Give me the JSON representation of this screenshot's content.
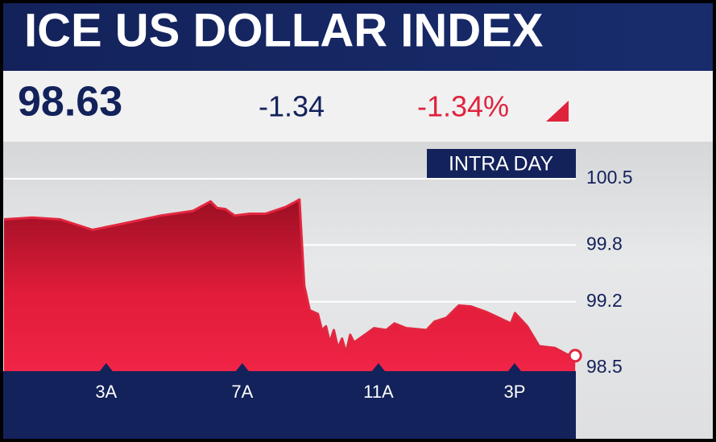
{
  "header": {
    "title": "ICE US DOLLAR INDEX",
    "price": "98.63",
    "change": "-1.34",
    "percent_change": "-1.34%"
  },
  "chart_data": {
    "type": "line",
    "label": "INTRA DAY",
    "x": [
      0,
      0.83,
      1.65,
      2.6,
      3.43,
      4.6,
      5.55,
      6.07,
      6.26,
      6.5,
      6.78,
      7.21,
      7.68,
      8.27,
      8.58,
      8.68,
      8.82,
      8.98,
      9.22,
      9.34,
      9.46,
      9.57,
      9.69,
      9.81,
      9.93,
      10.05,
      10.17,
      10.28,
      10.64,
      10.87,
      11.23,
      11.47,
      11.82,
      12.41,
      12.65,
      13.0,
      13.36,
      13.71,
      14.18,
      14.54,
      14.89,
      15.01,
      15.37,
      15.72,
      16.19,
      16.55,
      16.78
    ],
    "series": [
      {
        "name": "ICE US Dollar Index",
        "color": "#e3263f",
        "values": [
          100.07,
          100.09,
          100.07,
          99.96,
          100.02,
          100.11,
          100.16,
          100.26,
          100.19,
          100.18,
          100.11,
          100.13,
          100.13,
          100.2,
          100.26,
          100.28,
          99.37,
          99.11,
          99.07,
          98.9,
          98.94,
          98.77,
          98.9,
          98.71,
          98.81,
          98.66,
          98.85,
          98.77,
          98.86,
          98.92,
          98.9,
          98.97,
          98.92,
          98.9,
          98.99,
          99.03,
          99.16,
          99.15,
          99.09,
          99.03,
          98.97,
          99.08,
          98.94,
          98.73,
          98.71,
          98.64,
          98.63
        ]
      }
    ],
    "xlim": [
      0,
      16.8
    ],
    "xticks": [
      {
        "value": 3,
        "label": "3A"
      },
      {
        "value": 7,
        "label": "7A"
      },
      {
        "value": 11,
        "label": "11A"
      },
      {
        "value": 15,
        "label": "3P"
      }
    ],
    "ylim": [
      98.5,
      100.5
    ],
    "yticks": [
      100.5,
      99.8,
      99.2,
      98.5
    ],
    "grid": true
  }
}
